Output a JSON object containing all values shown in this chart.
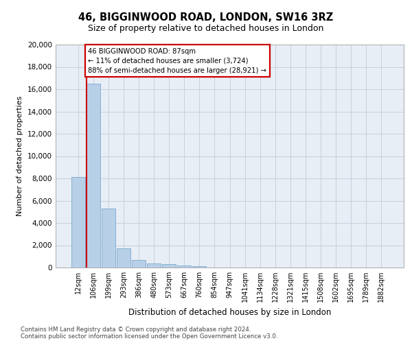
{
  "title_line1": "46, BIGGINWOOD ROAD, LONDON, SW16 3RZ",
  "title_line2": "Size of property relative to detached houses in London",
  "xlabel": "Distribution of detached houses by size in London",
  "ylabel": "Number of detached properties",
  "categories": [
    "12sqm",
    "106sqm",
    "199sqm",
    "293sqm",
    "386sqm",
    "480sqm",
    "573sqm",
    "667sqm",
    "760sqm",
    "854sqm",
    "947sqm",
    "1041sqm",
    "1134sqm",
    "1228sqm",
    "1321sqm",
    "1415sqm",
    "1508sqm",
    "1602sqm",
    "1695sqm",
    "1789sqm",
    "1882sqm"
  ],
  "values": [
    8100,
    16500,
    5300,
    1750,
    680,
    380,
    290,
    200,
    150,
    0,
    0,
    0,
    0,
    0,
    0,
    0,
    0,
    0,
    0,
    0,
    0
  ],
  "bar_color": "#b8cfe8",
  "bar_edge_color": "#6aa0c8",
  "annotation_line1": "46 BIGGINWOOD ROAD: 87sqm",
  "annotation_line2": "← 11% of detached houses are smaller (3,724)",
  "annotation_line3": "88% of semi-detached houses are larger (28,921) →",
  "annotation_border_color": "#cc0000",
  "property_line_color": "#cc0000",
  "ylim": [
    0,
    20000
  ],
  "yticks": [
    0,
    2000,
    4000,
    6000,
    8000,
    10000,
    12000,
    14000,
    16000,
    18000,
    20000
  ],
  "grid_color": "#c8d0dc",
  "background_color": "#e8eef6",
  "footer_line1": "Contains HM Land Registry data © Crown copyright and database right 2024.",
  "footer_line2": "Contains public sector information licensed under the Open Government Licence v3.0."
}
